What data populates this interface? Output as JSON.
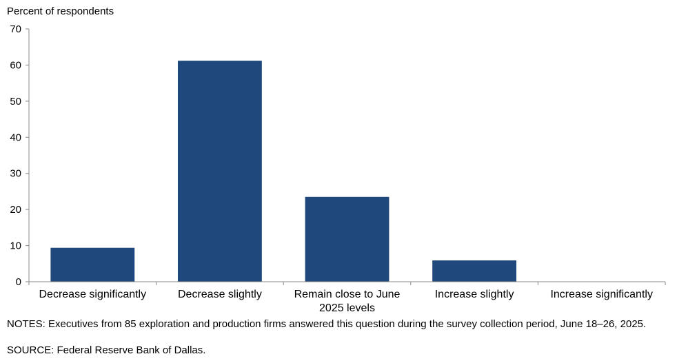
{
  "chart_data": {
    "type": "bar",
    "ylabel": "Percent of respondents",
    "categories": [
      [
        "Decrease significantly"
      ],
      [
        "Decrease slightly"
      ],
      [
        "Remain close to June",
        "2025 levels"
      ],
      [
        "Increase slightly"
      ],
      [
        "Increase significantly"
      ]
    ],
    "values": [
      9.4,
      61.2,
      23.5,
      5.9,
      0
    ],
    "ylim": [
      0,
      70
    ],
    "yticks": [
      "0",
      "10",
      "20",
      "30",
      "40",
      "50",
      "60",
      "70"
    ],
    "bar_color": "#1f497d",
    "grid": false
  },
  "notes": "NOTES: Executives from 85 exploration and production firms answered this question during the survey collection period, June 18–26, 2025.",
  "source": "SOURCE: Federal Reserve Bank of Dallas."
}
